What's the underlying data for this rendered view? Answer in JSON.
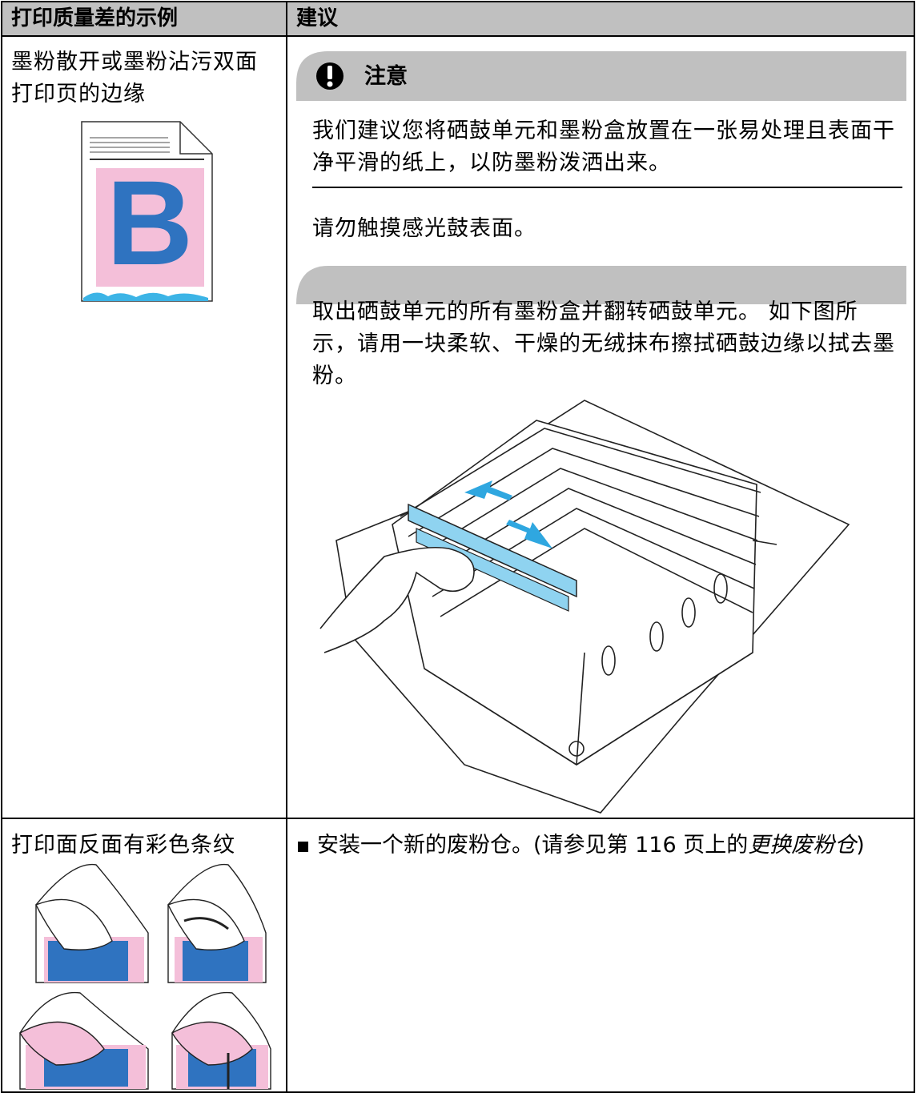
{
  "table": {
    "header": [
      "打印质量差的示例",
      "建议"
    ],
    "rows": [
      {
        "example": "墨粉散开或墨粉沾污双面打印页的边缘",
        "caution": {
          "title": "注意",
          "items": [
            "我们建议您将硒鼓单元和墨粉盒放置在一张易处理且表面干净平滑的纸上，以防墨粉泼洒出来。",
            "请勿触摸感光鼓表面。"
          ]
        },
        "instruction": "取出硒鼓单元的所有墨粉盒并翻转硒鼓单元。 如下图所示，请用一块柔软、干燥的无绒抹布擦拭硒鼓边缘以拭去墨粉。"
      },
      {
        "example": "打印面反面有彩色条纹",
        "suggestion": {
          "text": "安装一个新的废粉仓。(请参见第 116 页上的",
          "link": "更换废粉仓",
          "end": ")"
        }
      }
    ]
  }
}
